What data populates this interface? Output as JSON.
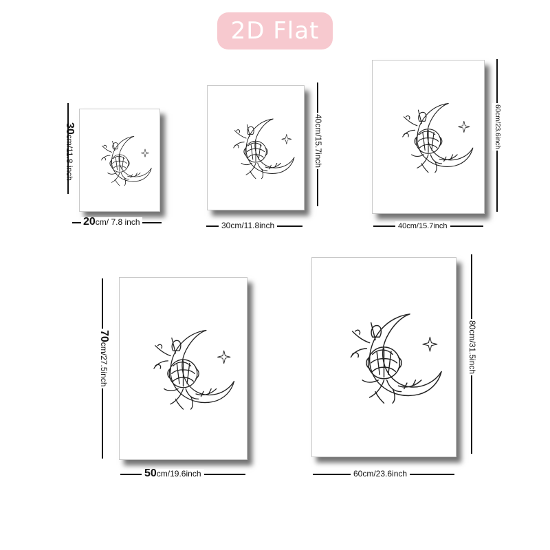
{
  "badge": {
    "text": "2D Flat",
    "color": "#f7c9cf"
  },
  "posters": [
    {
      "id": "p20x30",
      "width_label": {
        "num": "20",
        "rest": "cm/ 7.8 inch"
      },
      "height_label": {
        "num": "30",
        "rest": "cm/11.8 inch"
      }
    },
    {
      "id": "p30x40",
      "width_label": {
        "num": "",
        "rest": "30cm/11.8inch"
      },
      "height_label": {
        "num": "",
        "rest": "40cm/15.7inch"
      }
    },
    {
      "id": "p40x60",
      "width_label": {
        "num": "",
        "rest": "40cm/15.7inch"
      },
      "height_label": {
        "num": "",
        "rest": "60cm/23.6inch"
      }
    },
    {
      "id": "p50x70",
      "width_label": {
        "num": "50",
        "rest": "cm/19.6inch"
      },
      "height_label": {
        "num": "70",
        "rest": "cm/27.5inch"
      }
    },
    {
      "id": "p60x80",
      "width_label": {
        "num": "",
        "rest": "60cm/23.6inch"
      },
      "height_label": {
        "num": "",
        "rest": "80cm/31.5inch"
      }
    }
  ],
  "artwork": {
    "icon": "crescent-moon-floral-line-art",
    "stroke": "#222222"
  }
}
